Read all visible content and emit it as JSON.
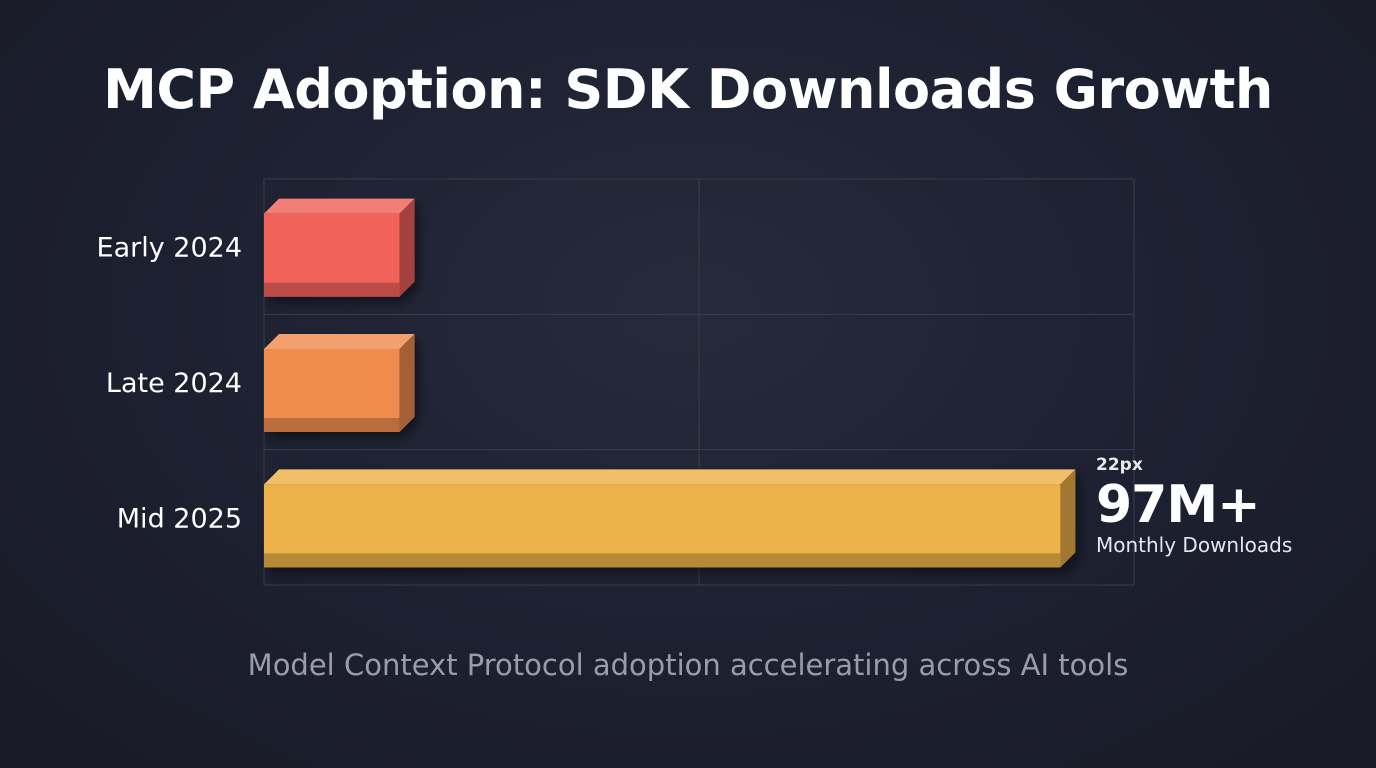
{
  "chart_data": {
    "type": "bar",
    "orientation": "horizontal",
    "title": "MCP Adoption: SDK Downloads Growth",
    "subtitle": "Model Context Protocol adoption accelerating across AI tools",
    "categories": [
      "Early 2024",
      "Late 2024",
      "Mid 2025"
    ],
    "values": [
      18,
      18,
      97
    ],
    "xlim": [
      0,
      104
    ],
    "grid": true,
    "colors": [
      "#f0625a",
      "#f08a4e",
      "#ecb148"
    ],
    "annotation": {
      "small": "22px",
      "value": "97M+",
      "label": "Monthly Downloads"
    }
  }
}
